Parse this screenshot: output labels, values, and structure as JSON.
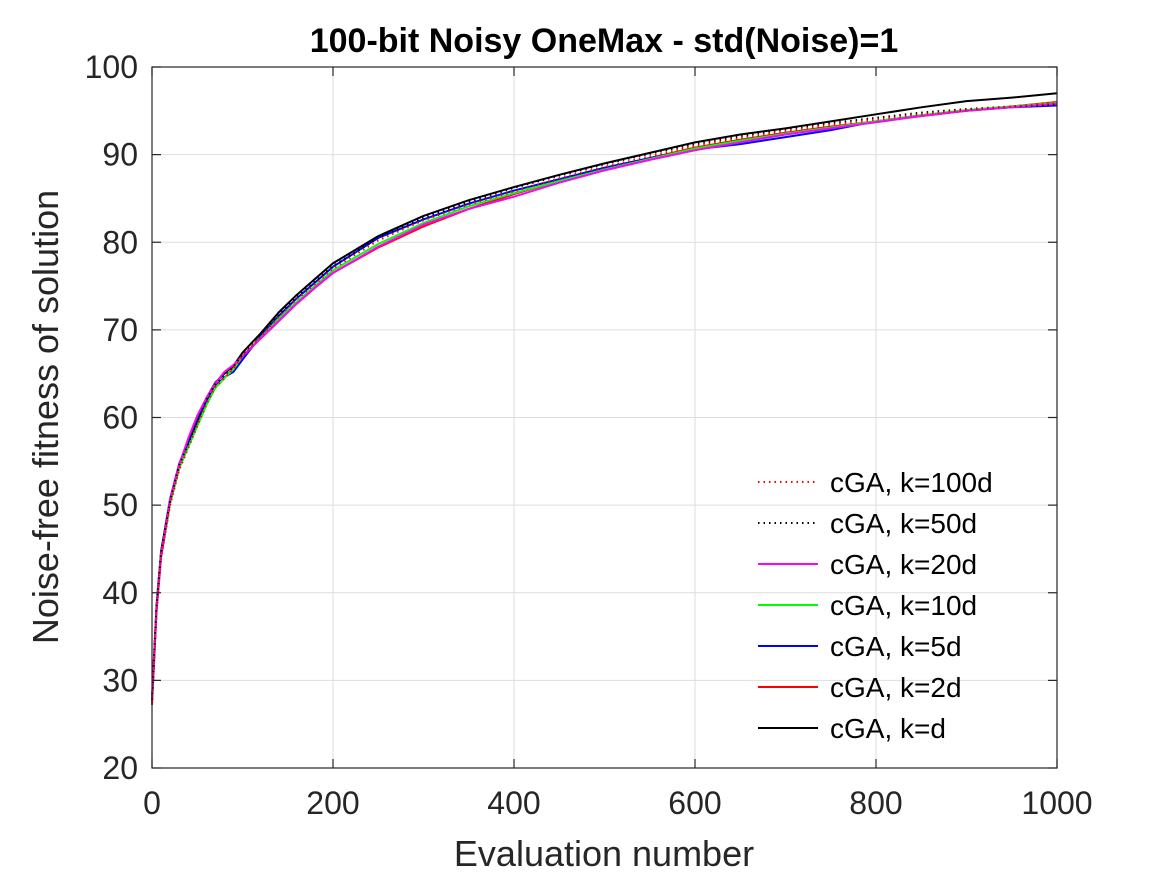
{
  "chart_data": {
    "type": "line",
    "title": "100-bit Noisy OneMax - std(Noise)=1",
    "xlabel": "Evaluation number",
    "ylabel": "Noise-free fitness of solution",
    "xlim": [
      0,
      1000
    ],
    "ylim": [
      20,
      100
    ],
    "xticks": [
      "0",
      "200",
      "400",
      "600",
      "800",
      "1000"
    ],
    "yticks": [
      "20",
      "30",
      "40",
      "50",
      "60",
      "70",
      "80",
      "90",
      "100"
    ],
    "grid": true,
    "legend_position": "bottom-right",
    "x": [
      0,
      5,
      10,
      20,
      30,
      40,
      50,
      60,
      70,
      80,
      90,
      100,
      120,
      140,
      160,
      180,
      200,
      250,
      300,
      350,
      400,
      450,
      500,
      550,
      600,
      650,
      700,
      750,
      800,
      850,
      900,
      950,
      1000
    ],
    "series": [
      {
        "name": "cGA, k=100d",
        "color": "#ff0000",
        "dash": "dotted",
        "values": [
          27.5,
          38,
          44,
          50,
          54,
          56.5,
          59,
          61.5,
          63.5,
          64.5,
          65.5,
          67,
          69.2,
          71.5,
          73.5,
          75.2,
          77,
          80.2,
          82.5,
          84.3,
          85.8,
          87.3,
          88.6,
          89.8,
          91,
          91.9,
          92.7,
          93.4,
          94,
          94.6,
          95.1,
          95.5,
          95.9
        ]
      },
      {
        "name": "cGA, k=50d",
        "color": "#000000",
        "dash": "dotted",
        "values": [
          27.8,
          38.5,
          44.5,
          50.5,
          54.5,
          57,
          59.5,
          62,
          63.8,
          64.8,
          65.8,
          67.2,
          69.5,
          71.8,
          73.8,
          75.5,
          77.3,
          80.5,
          82.8,
          84.6,
          86.2,
          87.6,
          88.9,
          90.1,
          91.2,
          92.1,
          92.9,
          93.6,
          94.2,
          94.8,
          95.2,
          95.5,
          95.7
        ]
      },
      {
        "name": "cGA, k=20d",
        "color": "#ff00ff",
        "dash": "solid",
        "values": [
          27.6,
          38,
          44.2,
          50.6,
          54.6,
          57.6,
          60.2,
          62.2,
          63.9,
          65.2,
          66,
          67,
          69,
          71,
          73,
          74.8,
          76.5,
          79.5,
          82,
          83.8,
          85.2,
          86.8,
          88.2,
          89.4,
          90.5,
          91.4,
          92.3,
          93,
          93.7,
          94.4,
          95,
          95.4,
          95.8
        ]
      },
      {
        "name": "cGA, k=10d",
        "color": "#00ff00",
        "dash": "solid",
        "values": [
          27.7,
          38.2,
          44.3,
          50.2,
          54.2,
          56.6,
          59,
          61.4,
          63.4,
          64.5,
          65.5,
          67,
          69.1,
          71.3,
          73.2,
          75,
          76.8,
          79.8,
          82.2,
          84.1,
          85.6,
          87,
          88.3,
          89.5,
          90.7,
          91.6,
          92.4,
          93.1,
          93.8,
          94.5,
          95.1,
          95.5,
          95.9
        ]
      },
      {
        "name": "cGA, k=5d",
        "color": "#0000ff",
        "dash": "solid",
        "values": [
          27.6,
          38.3,
          44.4,
          50.3,
          54.3,
          56.9,
          59.3,
          61.8,
          63.6,
          64.6,
          65.2,
          66.6,
          69.3,
          71.6,
          73.6,
          75.4,
          77.2,
          80.5,
          82.6,
          84.4,
          85.9,
          87.2,
          88.5,
          89.6,
          90.6,
          91.2,
          92,
          92.8,
          93.8,
          94.5,
          95,
          95.4,
          95.6
        ]
      },
      {
        "name": "cGA, k=2d",
        "color": "#ff0000",
        "dash": "solid",
        "values": [
          27.2,
          37.8,
          44,
          50.2,
          54.2,
          56.8,
          59.2,
          61.6,
          63.4,
          64.5,
          65.6,
          67,
          69,
          71,
          73,
          74.8,
          76.5,
          79.4,
          81.8,
          83.8,
          85.5,
          87,
          88.4,
          89.6,
          90.8,
          91.7,
          92.5,
          93.2,
          93.8,
          94.4,
          95,
          95.5,
          96
        ]
      },
      {
        "name": "cGA, k=d",
        "color": "#000000",
        "dash": "solid",
        "values": [
          28,
          38.6,
          44.7,
          50.7,
          54.7,
          57.2,
          59.6,
          62.2,
          64,
          65,
          65.9,
          67.4,
          69.6,
          72,
          74,
          75.8,
          77.6,
          80.7,
          83,
          84.8,
          86.3,
          87.7,
          89,
          90.2,
          91.4,
          92.3,
          93,
          93.8,
          94.6,
          95.4,
          96.1,
          96.5,
          97
        ]
      }
    ]
  }
}
